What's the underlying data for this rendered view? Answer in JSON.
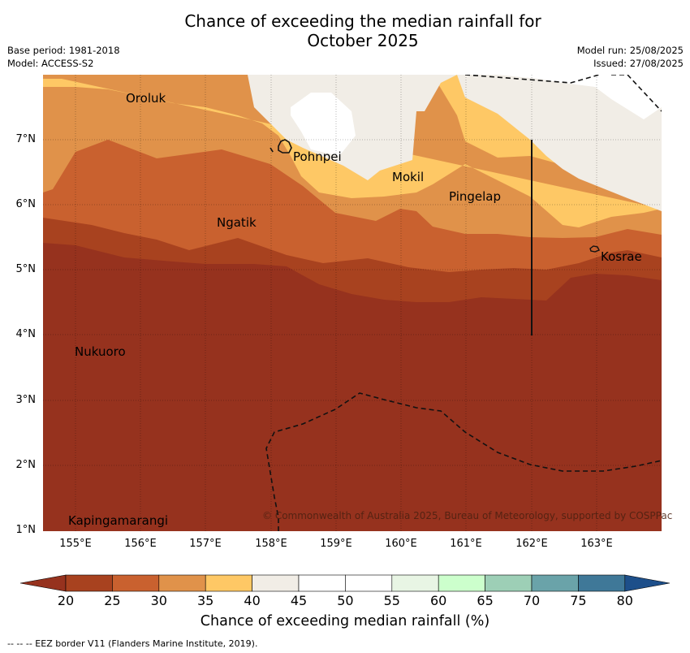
{
  "title_line1": "Chance of exceeding the median rainfall for",
  "title_line2": "October 2025",
  "meta": {
    "base_period": "Base period: 1981-2018",
    "model": "Model: ACCESS-S2",
    "model_run": "Model run: 25/08/2025",
    "issued": "Issued: 27/08/2025"
  },
  "latitudes": [
    "7°N",
    "6°N",
    "5°N",
    "4°N",
    "3°N",
    "2°N",
    "1°N"
  ],
  "longitudes": [
    "155°E",
    "156°E",
    "157°E",
    "158°E",
    "159°E",
    "160°E",
    "161°E",
    "162°E",
    "163°E"
  ],
  "places": {
    "oroluk": "Oroluk",
    "pohnpei": "Pohnpei",
    "mokil": "Mokil",
    "pingelap": "Pingelap",
    "ngatik": "Ngatik",
    "kosrae": "Kosrae",
    "nukuoro": "Nukuoro",
    "kapingamarangi": "Kapingamarangi"
  },
  "copyright": "© Commonwealth of Australia 2025, Bureau of Meteorology, supported by COSPPac",
  "colorbar": {
    "ticks": [
      "20",
      "25",
      "30",
      "35",
      "40",
      "45",
      "50",
      "55",
      "60",
      "65",
      "70",
      "75",
      "80"
    ],
    "colors": [
      "#A8421F",
      "#C9612F",
      "#E0924A",
      "#FEC865",
      "#F1EDE6",
      "#FFFFFF",
      "#FFFFFF",
      "#E8F5E4",
      "#CCFFCC",
      "#9DCFB6",
      "#6AA3A9",
      "#3F7898"
    ],
    "under_color": "#96321E",
    "over_color": "#1D4F8A",
    "label": "Chance of exceeding median rainfall (%)"
  },
  "footnote": "--  --  -- EEZ border V11 (Flanders Marine Institute, 2019)."
}
